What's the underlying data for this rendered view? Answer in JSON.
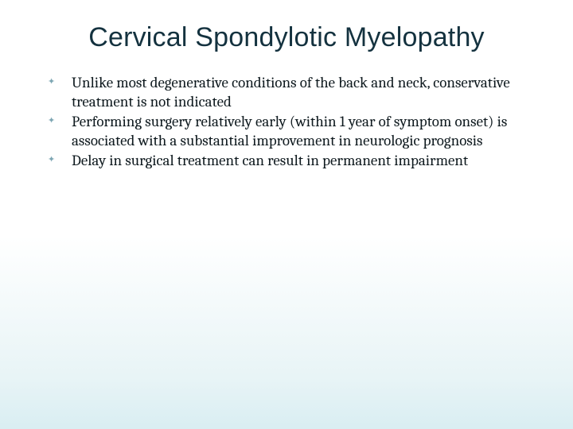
{
  "slide": {
    "title": "Cervical Spondylotic Myelopathy",
    "title_color": "#14323f",
    "title_fontsize": 34,
    "title_font": "Arial",
    "body_font": "Cambria",
    "body_fontsize": 19,
    "body_color": "#0f1a1f",
    "bullet_marker": "✦",
    "bullet_marker_color": "#7da6b3",
    "background_gradient": [
      "#ffffff",
      "#ffffff",
      "#e8f4f6",
      "#d9eef2"
    ],
    "bullets": [
      "Unlike most degenerative conditions of the back and neck, conservative treatment is not indicated",
      "Performing surgery relatively early (within 1 year of symptom onset) is associated with a substantial improvement in neurologic prognosis",
      "Delay in surgical treatment can result in permanent impairment"
    ]
  }
}
